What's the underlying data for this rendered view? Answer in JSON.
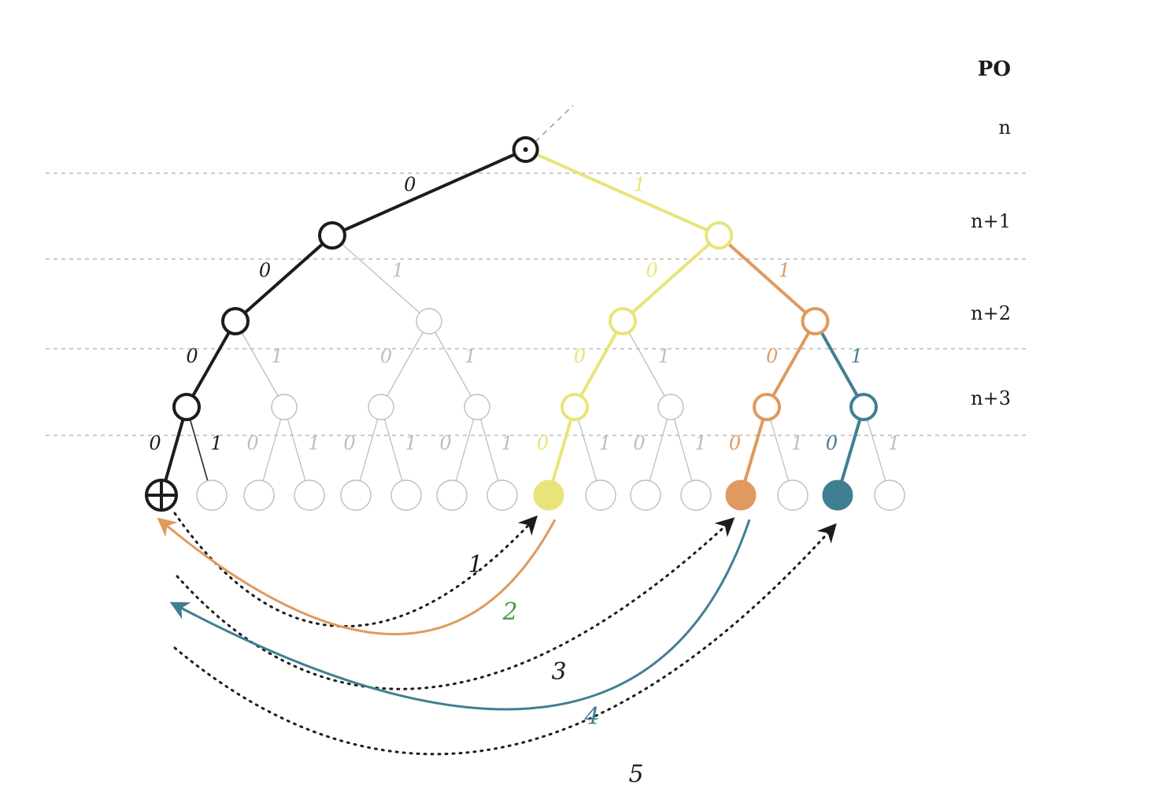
{
  "header": {
    "title": "PO"
  },
  "levels": [
    "n",
    "n+1",
    "n+2",
    "n+3"
  ],
  "colors": {
    "black": "#1c1c1c",
    "gray": "#bdbdbd",
    "yellow": "#e9e47a",
    "orange": "#df9a5f",
    "teal": "#407f93",
    "green": "#4b9a48"
  },
  "bit_labels": {
    "zero": "0",
    "one": "1"
  },
  "arcs": [
    {
      "label": "1",
      "style": "dotted",
      "color": "black"
    },
    {
      "label": "2",
      "style": "solid",
      "color": "orange",
      "label_color": "green"
    },
    {
      "label": "3",
      "style": "dotted",
      "color": "black"
    },
    {
      "label": "4",
      "style": "solid",
      "color": "teal"
    },
    {
      "label": "5",
      "style": "dotted",
      "color": "black"
    }
  ],
  "tree": {
    "root_symbol": "circle-dot-icon",
    "leaf_symbol": "circle-plus-icon",
    "highlighted_leaves": [
      {
        "path": "0000",
        "type": "origin",
        "color": "black"
      },
      {
        "path": "1000",
        "type": "filled",
        "color": "yellow"
      },
      {
        "path": "1100",
        "type": "filled",
        "color": "orange"
      },
      {
        "path": "1110",
        "type": "filled",
        "color": "teal"
      }
    ],
    "highlighted_paths": [
      {
        "path": "0000",
        "color": "black"
      },
      {
        "path": "1000",
        "color": "yellow"
      },
      {
        "path": "1100",
        "color": "orange"
      },
      {
        "path": "1110",
        "color": "teal"
      }
    ]
  }
}
